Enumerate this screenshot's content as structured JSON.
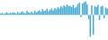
{
  "chart_data": {
    "type": "bar",
    "values": [
      0.3,
      0.5,
      0.2,
      0.4,
      0.6,
      0.3,
      0.5,
      0.4,
      0.6,
      0.5,
      0.3,
      0.7,
      0.4,
      0.6,
      0.8,
      0.5,
      0.4,
      0.9,
      0.6,
      0.5,
      0.7,
      0.4,
      1.0,
      0.6,
      0.8,
      1.1,
      0.7,
      1.3,
      0.9,
      1.0,
      1.4,
      0.8,
      1.2,
      1.5,
      1.0,
      1.6,
      1.3,
      1.8,
      1.5,
      2.0,
      1.7,
      2.2,
      1.9,
      2.4,
      2.0,
      2.1,
      1.8,
      2.3,
      1.6,
      1.9,
      2.5,
      2.8,
      -0.5,
      2.6,
      2.9,
      3.1,
      2.4,
      -1.0,
      -5.0,
      2.2,
      -4.5,
      2.0,
      1.8,
      2.3,
      -1.2,
      1.9,
      2.1,
      -0.8,
      1.7,
      1.5
    ],
    "color": "#4badd4",
    "ylim": [
      -5.75,
      3.41
    ],
    "grid": false,
    "tick_labels": false
  }
}
